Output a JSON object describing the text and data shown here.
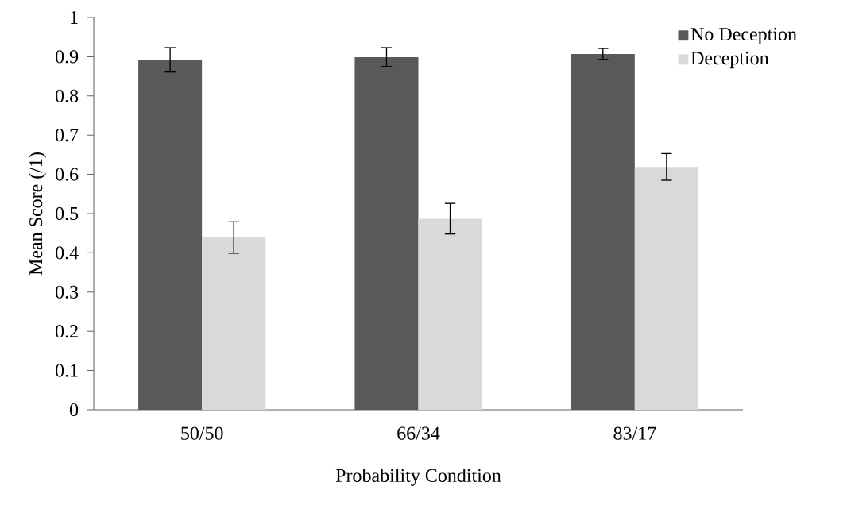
{
  "chart_data": {
    "type": "bar",
    "xlabel": "Probability Condition",
    "ylabel": "Mean Score (/1)",
    "categories": [
      "50/50",
      "66/34",
      "83/17"
    ],
    "series": [
      {
        "name": "No Deception",
        "color": "#595959",
        "values": [
          0.892,
          0.899,
          0.907
        ],
        "errors": [
          0.031,
          0.024,
          0.014
        ]
      },
      {
        "name": "Deception",
        "color": "#d9d9d9",
        "values": [
          0.439,
          0.487,
          0.619
        ],
        "errors": [
          0.04,
          0.039,
          0.034
        ]
      }
    ],
    "ylim": [
      0,
      1
    ],
    "yticks": [
      0,
      0.1,
      0.2,
      0.3,
      0.4,
      0.5,
      0.6,
      0.7,
      0.8,
      0.9,
      1
    ],
    "grid": false,
    "legend": "top right"
  }
}
